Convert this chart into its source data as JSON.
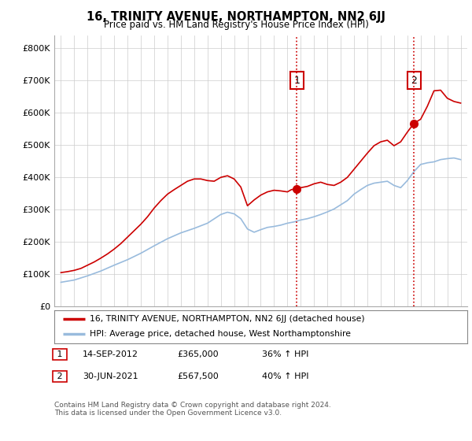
{
  "title": "16, TRINITY AVENUE, NORTHAMPTON, NN2 6JJ",
  "subtitle": "Price paid vs. HM Land Registry's House Price Index (HPI)",
  "ylabel_ticks": [
    "£0",
    "£100K",
    "£200K",
    "£300K",
    "£400K",
    "£500K",
    "£600K",
    "£700K",
    "£800K"
  ],
  "ytick_values": [
    0,
    100000,
    200000,
    300000,
    400000,
    500000,
    600000,
    700000,
    800000
  ],
  "ylim": [
    0,
    840000
  ],
  "xlim_start": 1994.5,
  "xlim_end": 2025.5,
  "xticks": [
    1995,
    1996,
    1997,
    1998,
    1999,
    2000,
    2001,
    2002,
    2003,
    2004,
    2005,
    2006,
    2007,
    2008,
    2009,
    2010,
    2011,
    2012,
    2013,
    2014,
    2015,
    2016,
    2017,
    2018,
    2019,
    2020,
    2021,
    2022,
    2023,
    2024,
    2025
  ],
  "property_color": "#cc0000",
  "hpi_color": "#99bbdd",
  "sale1_x": 2012.71,
  "sale1_y": 365000,
  "sale2_x": 2021.5,
  "sale2_y": 567500,
  "ann1_y": 700000,
  "ann2_y": 700000,
  "vline_color": "#cc0000",
  "annotation1_label": "1",
  "annotation2_label": "2",
  "legend_property": "16, TRINITY AVENUE, NORTHAMPTON, NN2 6JJ (detached house)",
  "legend_hpi": "HPI: Average price, detached house, West Northamptonshire",
  "table_row1": [
    "1",
    "14-SEP-2012",
    "£365,000",
    "36% ↑ HPI"
  ],
  "table_row2": [
    "2",
    "30-JUN-2021",
    "£567,500",
    "40% ↑ HPI"
  ],
  "footer": "Contains HM Land Registry data © Crown copyright and database right 2024.\nThis data is licensed under the Open Government Licence v3.0.",
  "bg_color": "#ffffff",
  "grid_color": "#cccccc",
  "hpi_years": [
    1995,
    1996,
    1997,
    1998,
    1999,
    2000,
    2001,
    2002,
    2003,
    2004,
    2005,
    2006,
    2007,
    2007.5,
    2008,
    2008.5,
    2009,
    2009.5,
    2010,
    2010.5,
    2011,
    2011.5,
    2012,
    2012.5,
    2013,
    2013.5,
    2014,
    2014.5,
    2015,
    2015.5,
    2016,
    2016.5,
    2017,
    2017.5,
    2018,
    2018.5,
    2019,
    2019.5,
    2020,
    2020.5,
    2021,
    2021.5,
    2022,
    2022.5,
    2023,
    2023.5,
    2024,
    2024.5,
    2025
  ],
  "hpi_vals": [
    75000,
    82000,
    95000,
    110000,
    128000,
    145000,
    165000,
    188000,
    210000,
    228000,
    242000,
    258000,
    285000,
    292000,
    287000,
    272000,
    240000,
    230000,
    238000,
    245000,
    248000,
    252000,
    258000,
    262000,
    268000,
    272000,
    278000,
    285000,
    293000,
    302000,
    315000,
    328000,
    348000,
    362000,
    375000,
    382000,
    385000,
    388000,
    375000,
    368000,
    390000,
    418000,
    440000,
    445000,
    448000,
    455000,
    458000,
    460000,
    455000
  ],
  "prop_years": [
    1995,
    1995.5,
    1996,
    1996.5,
    1997,
    1997.5,
    1998,
    1998.5,
    1999,
    1999.5,
    2000,
    2000.5,
    2001,
    2001.5,
    2002,
    2002.5,
    2003,
    2003.5,
    2004,
    2004.5,
    2005,
    2005.5,
    2006,
    2006.5,
    2007,
    2007.5,
    2008,
    2008.5,
    2009,
    2009.5,
    2010,
    2010.5,
    2011,
    2011.5,
    2012,
    2012.3,
    2012.71,
    2013,
    2013.5,
    2014,
    2014.5,
    2015,
    2015.5,
    2016,
    2016.5,
    2017,
    2017.5,
    2018,
    2018.5,
    2019,
    2019.5,
    2020,
    2020.5,
    2021,
    2021.5,
    2022,
    2022.5,
    2023,
    2023.5,
    2024,
    2024.5,
    2025
  ],
  "prop_vals": [
    105000,
    108000,
    112000,
    118000,
    128000,
    138000,
    150000,
    163000,
    178000,
    195000,
    215000,
    235000,
    255000,
    278000,
    305000,
    328000,
    348000,
    362000,
    375000,
    388000,
    395000,
    395000,
    390000,
    388000,
    400000,
    405000,
    395000,
    370000,
    312000,
    330000,
    345000,
    355000,
    360000,
    358000,
    355000,
    362000,
    365000,
    368000,
    372000,
    380000,
    385000,
    378000,
    375000,
    385000,
    400000,
    425000,
    450000,
    475000,
    498000,
    510000,
    515000,
    498000,
    510000,
    540000,
    567500,
    580000,
    620000,
    668000,
    670000,
    645000,
    635000,
    630000
  ]
}
